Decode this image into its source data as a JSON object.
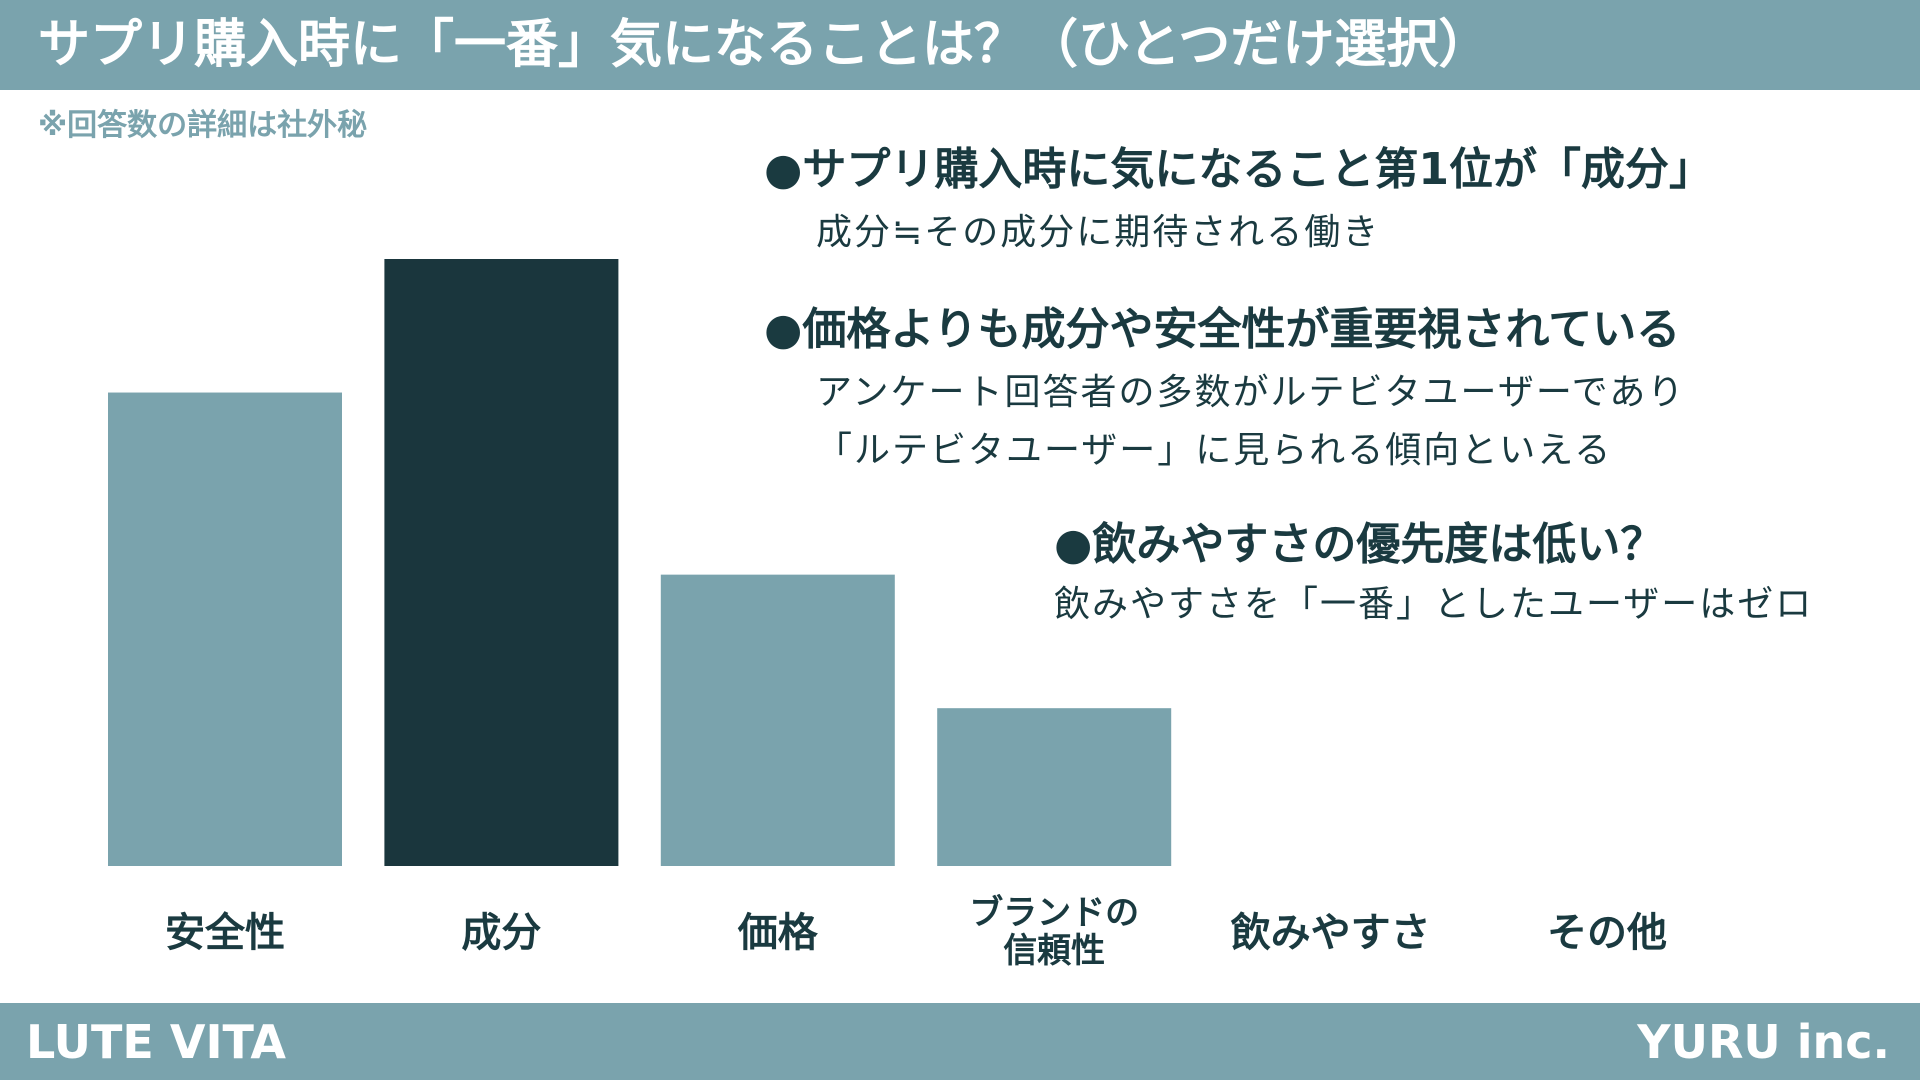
{
  "header": {
    "title": "サプリ購入時に「一番」気になることは？（ひとつだけ選択）"
  },
  "note": "※回答数の詳細は社外秘",
  "bullets": [
    {
      "heading": "●サプリ購入時に気になること第1位が「成分」",
      "lines": [
        "成分≒その成分に期待される働き"
      ]
    },
    {
      "heading": "●価格よりも成分や安全性が重要視されている",
      "lines": [
        "アンケート回答者の多数がルテビタユーザーであり",
        "「ルテビタユーザー」に見られる傾向といえる"
      ]
    },
    {
      "heading": "●飲みやすさの優先度は低い？",
      "lines": [
        "飲みやすさを「一番」としたユーザーはゼロ"
      ]
    }
  ],
  "chart_data": {
    "type": "bar",
    "categories": [
      "安全性",
      "成分",
      "価格",
      "ブランドの\n信頼性",
      "飲みやすさ",
      "その他"
    ],
    "values": [
      78,
      100,
      48,
      26,
      0,
      0
    ],
    "ylim": [
      0,
      100
    ],
    "title": "",
    "xlabel": "",
    "ylabel": "",
    "grid": false,
    "highlight_index": 1,
    "colors": {
      "bar": "#7aa3ad",
      "highlight": "#1a363d"
    }
  },
  "footer": {
    "left": "LUTE VITA",
    "right": "YURU inc."
  }
}
